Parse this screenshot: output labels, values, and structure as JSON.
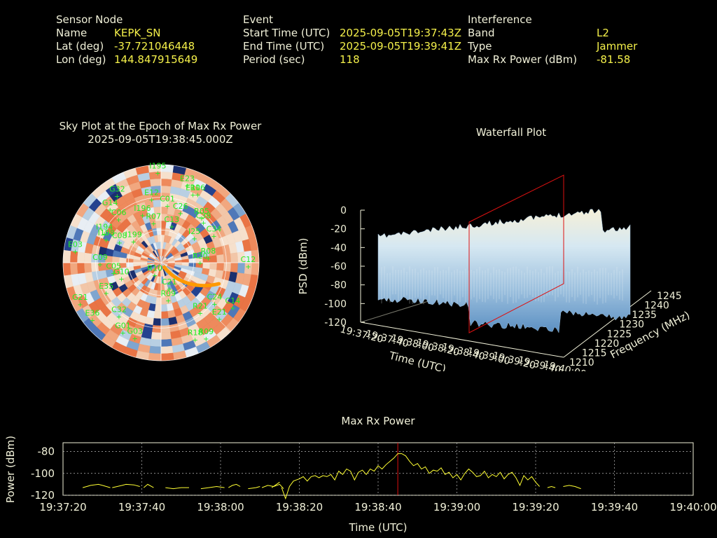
{
  "sensor": {
    "heading": "Sensor Node",
    "name_label": "Name",
    "name": "KEPK_SN",
    "lat_label": "Lat (deg)",
    "lat": "-37.721046448",
    "lon_label": "Lon (deg)",
    "lon": "144.847915649"
  },
  "event": {
    "heading": "Event",
    "start_label": "Start Time (UTC)",
    "start": "2025-09-05T19:37:43Z",
    "end_label": "End Time (UTC)",
    "end": "2025-09-05T19:39:41Z",
    "period_label": "Period (sec)",
    "period": "118"
  },
  "interference": {
    "heading": "Interference",
    "band_label": "Band",
    "band": "L2",
    "type_label": "Type",
    "type": "Jammer",
    "power_label": "Max Rx Power (dBm)",
    "power": "-81.58"
  },
  "colors": {
    "label_text": "#f0f0d8",
    "value_text": "#f4f04a",
    "sat_label": "#22ee22",
    "trace": "#ffff33",
    "marker": "#dd1111",
    "jammer_track": "#ff9900"
  },
  "chart_data": [
    {
      "type": "polar",
      "title": "Sky Plot at the Epoch of Max Rx Power",
      "subtitle": "2025-09-05T19:38:45.000Z",
      "satellites": [
        {
          "id": "I195",
          "az": 358,
          "el": 86
        },
        {
          "id": "E23",
          "az": 18,
          "el": 78
        },
        {
          "id": "R06",
          "az": 27,
          "el": 74
        },
        {
          "id": "E11",
          "az": 24,
          "el": 72
        },
        {
          "id": "G32",
          "az": 328,
          "el": 76
        },
        {
          "id": "G14",
          "az": 318,
          "el": 70
        },
        {
          "id": "E12",
          "az": 352,
          "el": 62
        },
        {
          "id": "R05",
          "az": 40,
          "el": 58
        },
        {
          "id": "C38",
          "az": 44,
          "el": 56
        },
        {
          "id": "C06",
          "az": 318,
          "el": 58
        },
        {
          "id": "C01",
          "az": 6,
          "el": 56
        },
        {
          "id": "C34",
          "az": 60,
          "el": 56
        },
        {
          "id": "C26",
          "az": 20,
          "el": 52
        },
        {
          "id": "I196",
          "az": 340,
          "el": 50
        },
        {
          "id": "I198",
          "az": 296,
          "el": 56
        },
        {
          "id": "C08",
          "az": 300,
          "el": 44
        },
        {
          "id": "I194",
          "az": 300,
          "el": 60
        },
        {
          "id": "R07",
          "az": 350,
          "el": 40
        },
        {
          "id": "C13",
          "az": 15,
          "el": 38
        },
        {
          "id": "I199",
          "az": 312,
          "el": 34
        },
        {
          "id": "E03",
          "az": 280,
          "el": 80
        },
        {
          "id": "C09",
          "az": 272,
          "el": 56
        },
        {
          "id": "C05",
          "az": 262,
          "el": 44
        },
        {
          "id": "G10",
          "az": 253,
          "el": 38
        },
        {
          "id": "E35",
          "az": 244,
          "el": 56
        },
        {
          "id": "I25",
          "az": 50,
          "el": 40
        },
        {
          "id": "R20",
          "az": 85,
          "el": 36
        },
        {
          "id": "R08",
          "az": 80,
          "el": 44
        },
        {
          "id": "C12",
          "az": 90,
          "el": 80
        },
        {
          "id": "R21",
          "az": 140,
          "el": 56
        },
        {
          "id": "E21",
          "az": 132,
          "el": 72
        },
        {
          "id": "C24",
          "az": 125,
          "el": 60
        },
        {
          "id": "C14",
          "az": 120,
          "el": 76
        },
        {
          "id": "C21",
          "az": 160,
          "el": 22
        },
        {
          "id": "R09",
          "az": 168,
          "el": 32
        },
        {
          "id": "R10",
          "az": 215,
          "el": 10
        },
        {
          "id": "G21",
          "az": 245,
          "el": 82
        },
        {
          "id": "E36",
          "az": 232,
          "el": 80
        },
        {
          "id": "C32",
          "az": 220,
          "el": 60
        },
        {
          "id": "G01",
          "az": 210,
          "el": 70
        },
        {
          "id": "G03",
          "az": 200,
          "el": 70
        },
        {
          "id": "R09",
          "az": 148,
          "el": 78
        },
        {
          "id": "R18",
          "az": 155,
          "el": 74
        }
      ],
      "jammer_track_az": [
        110,
        145
      ]
    },
    {
      "type": "surface3d",
      "title": "Waterfall Plot",
      "zlabel": "PSD (dBm)",
      "xlabel": "Time (UTC)",
      "ylabel": "Frequency (MHz)",
      "z_ticks": [
        "0",
        "-20",
        "-40",
        "-60",
        "-80",
        "-100",
        "-120"
      ],
      "zlim": [
        -120,
        0
      ],
      "time_ticks": [
        "19:37:20",
        "19:37:40",
        "19:38:00",
        "19:38:20",
        "19:38:40",
        "19:39:00",
        "19:39:20",
        "19:39:40",
        "19:40:00"
      ],
      "freq_ticks": [
        "1210",
        "1215",
        "1220",
        "1225",
        "1230",
        "1235",
        "1240",
        "1245"
      ],
      "ylim": [
        1210,
        1245
      ],
      "epoch_marker": "19:38:45"
    },
    {
      "type": "line",
      "title": "Max Rx Power",
      "xlabel": "Time (UTC)",
      "ylabel": "Power (dBm)",
      "ylim": [
        -120,
        -72
      ],
      "y_ticks": [
        -80,
        -100,
        -120
      ],
      "x_ticks": [
        "19:37:20",
        "19:37:40",
        "19:38:00",
        "19:38:20",
        "19:38:40",
        "19:39:00",
        "19:39:20",
        "19:39:40",
        "19:40:00"
      ],
      "x_start_sec": 0,
      "x_end_sec": 160,
      "marker_sec": 85,
      "grid": true,
      "series": [
        {
          "segments": [
            [
              [
                5,
                -113
              ],
              [
                7,
                -111
              ],
              [
                9,
                -110
              ],
              [
                10,
                -111
              ],
              [
                12,
                -113
              ]
            ],
            [
              [
                12.5,
                -113
              ],
              [
                15,
                -111
              ],
              [
                16,
                -110
              ],
              [
                18,
                -110.5
              ],
              [
                19.5,
                -112
              ]
            ],
            [
              [
                20.5,
                -113
              ],
              [
                21.5,
                -110
              ],
              [
                23,
                -113
              ]
            ],
            [
              [
                26,
                -113
              ],
              [
                28,
                -114
              ],
              [
                30,
                -113
              ],
              [
                32,
                -113
              ]
            ],
            [
              [
                35,
                -114
              ],
              [
                37,
                -113
              ],
              [
                39,
                -112
              ],
              [
                41,
                -113
              ]
            ],
            [
              [
                42,
                -113
              ],
              [
                43,
                -111
              ],
              [
                44,
                -110
              ],
              [
                45,
                -112
              ]
            ],
            [
              [
                47,
                -114
              ],
              [
                49,
                -113
              ],
              [
                50,
                -112
              ]
            ],
            [
              [
                50.5,
                -113
              ],
              [
                52,
                -111
              ],
              [
                53.5,
                -112
              ],
              [
                55,
                -110
              ],
              [
                56,
                -114
              ]
            ],
            [
              [
                53,
                -113
              ],
              [
                55,
                -108
              ]
            ],
            [
              [
                55.5,
                -113
              ],
              [
                56.5,
                -123
              ],
              [
                57.5,
                -112
              ],
              [
                58.5,
                -107
              ],
              [
                60,
                -105
              ],
              [
                61,
                -103
              ],
              [
                62,
                -107
              ],
              [
                63,
                -103
              ],
              [
                64,
                -102
              ],
              [
                65,
                -104
              ],
              [
                66,
                -102
              ],
              [
                67,
                -103
              ],
              [
                68,
                -101
              ],
              [
                69,
                -106
              ],
              [
                70,
                -98
              ],
              [
                71,
                -101
              ],
              [
                72,
                -96
              ],
              [
                73,
                -98
              ],
              [
                74,
                -106
              ],
              [
                75,
                -99
              ],
              [
                76,
                -97
              ],
              [
                77,
                -101
              ],
              [
                78,
                -96
              ],
              [
                79,
                -98
              ],
              [
                80,
                -93
              ],
              [
                81,
                -96
              ],
              [
                82,
                -92
              ],
              [
                83,
                -89
              ],
              [
                84,
                -86
              ],
              [
                85,
                -82
              ],
              [
                86,
                -82
              ],
              [
                87,
                -84
              ],
              [
                88,
                -89
              ],
              [
                89,
                -93
              ],
              [
                90,
                -91
              ],
              [
                91,
                -96
              ],
              [
                92,
                -94
              ],
              [
                93,
                -100
              ],
              [
                94,
                -97
              ],
              [
                95,
                -98
              ],
              [
                96,
                -95
              ],
              [
                97,
                -101
              ],
              [
                98,
                -99
              ],
              [
                99,
                -104
              ],
              [
                100,
                -101
              ],
              [
                101,
                -106
              ],
              [
                102,
                -100
              ],
              [
                103,
                -96
              ],
              [
                104,
                -99
              ],
              [
                105,
                -103
              ],
              [
                106,
                -102
              ],
              [
                107,
                -98
              ],
              [
                108,
                -104
              ],
              [
                109,
                -101
              ],
              [
                110,
                -103
              ],
              [
                111,
                -99
              ],
              [
                112,
                -105
              ],
              [
                113,
                -101
              ],
              [
                114,
                -99
              ],
              [
                115,
                -104
              ],
              [
                116,
                -111
              ],
              [
                117,
                -102
              ],
              [
                118,
                -106
              ],
              [
                119,
                -103
              ],
              [
                120,
                -108
              ],
              [
                121,
                -112
              ]
            ],
            [
              [
                123,
                -113
              ],
              [
                124,
                -112
              ],
              [
                125,
                -113
              ]
            ],
            [
              [
                127,
                -112
              ],
              [
                128.5,
                -111
              ],
              [
                130,
                -112
              ],
              [
                131.5,
                -114
              ]
            ]
          ]
        }
      ]
    }
  ]
}
